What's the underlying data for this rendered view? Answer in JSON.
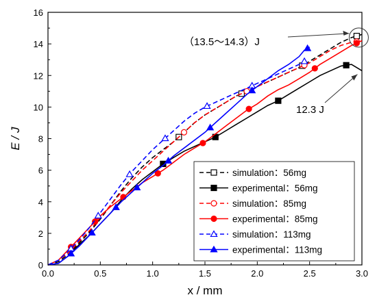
{
  "chart_data": {
    "type": "line",
    "xlabel": "x / mm",
    "ylabel": "E / J",
    "xlim": [
      0,
      3.0
    ],
    "ylim": [
      0,
      16
    ],
    "x_ticks": [
      "0.0",
      "0.5",
      "1.0",
      "1.5",
      "2.0",
      "2.5",
      "3.0"
    ],
    "y_ticks": [
      "0",
      "2",
      "4",
      "6",
      "8",
      "10",
      "12",
      "14",
      "16"
    ],
    "grid": false,
    "legend_position": "bottom-right",
    "annotations": [
      {
        "text": "（13.5～14.3）J",
        "x": 2.97,
        "y": 14.4
      },
      {
        "text": "12.3 J",
        "x": 2.97,
        "y": 12.2
      }
    ],
    "series": [
      {
        "name": "simulation：56mg",
        "style": "dashed",
        "marker": "open-square",
        "color": "#000000",
        "x": [
          0,
          0.1,
          0.2,
          0.3,
          0.4,
          0.5,
          0.6,
          0.7,
          0.8,
          0.9,
          1.0,
          1.1,
          1.2,
          1.3,
          1.4,
          1.5,
          1.6,
          1.7,
          1.8,
          1.9,
          2.0,
          2.1,
          2.2,
          2.3,
          2.4,
          2.5,
          2.6,
          2.7,
          2.8,
          2.9,
          3.0
        ],
        "y": [
          0,
          0.2,
          0.7,
          1.4,
          2.1,
          2.9,
          3.8,
          4.7,
          5.5,
          6.2,
          6.8,
          7.3,
          7.8,
          8.4,
          9.0,
          9.5,
          9.9,
          10.3,
          10.7,
          11.0,
          11.3,
          11.6,
          11.9,
          12.2,
          12.5,
          12.9,
          13.3,
          13.7,
          14.1,
          14.4,
          14.6
        ],
        "marker_x": [
          1.25,
          1.85,
          2.43,
          2.95
        ]
      },
      {
        "name": "experimental：56mg",
        "style": "solid",
        "marker": "filled-square",
        "color": "#000000",
        "x": [
          0,
          0.1,
          0.2,
          0.3,
          0.4,
          0.5,
          0.6,
          0.7,
          0.8,
          0.9,
          1.0,
          1.1,
          1.2,
          1.3,
          1.4,
          1.5,
          1.6,
          1.7,
          1.8,
          1.9,
          2.0,
          2.1,
          2.2,
          2.3,
          2.4,
          2.5,
          2.6,
          2.7,
          2.8,
          2.9,
          2.95,
          3.0
        ],
        "y": [
          0,
          0.1,
          0.6,
          1.3,
          1.9,
          2.6,
          3.3,
          4.1,
          4.8,
          5.4,
          5.9,
          6.4,
          6.8,
          7.2,
          7.5,
          7.8,
          8.1,
          8.5,
          8.9,
          9.3,
          9.7,
          10.1,
          10.4,
          10.8,
          11.2,
          11.6,
          12.0,
          12.3,
          12.6,
          12.7,
          12.5,
          12.3
        ],
        "marker_x": [
          1.1,
          1.6,
          2.2,
          2.85
        ]
      },
      {
        "name": "simulation：85mg",
        "style": "dashed",
        "marker": "open-circle",
        "color": "#ff0000",
        "x": [
          0,
          0.1,
          0.2,
          0.3,
          0.4,
          0.5,
          0.6,
          0.7,
          0.8,
          0.9,
          1.0,
          1.1,
          1.2,
          1.3,
          1.4,
          1.5,
          1.6,
          1.7,
          1.8,
          1.9,
          2.0,
          2.1,
          2.2,
          2.3,
          2.4,
          2.5,
          2.6,
          2.7,
          2.8,
          2.9,
          3.0
        ],
        "y": [
          0,
          0.3,
          0.8,
          1.5,
          2.2,
          3.0,
          3.8,
          4.6,
          5.3,
          6.0,
          6.6,
          7.2,
          7.8,
          8.4,
          9.0,
          9.5,
          9.9,
          10.3,
          10.7,
          11.0,
          11.3,
          11.6,
          11.9,
          12.2,
          12.5,
          12.8,
          13.2,
          13.6,
          13.9,
          14.1,
          14.2
        ],
        "marker_x": [
          1.3,
          1.9,
          2.45,
          2.95
        ]
      },
      {
        "name": "experimental：85mg",
        "style": "solid",
        "marker": "filled-circle",
        "color": "#ff0000",
        "x": [
          0,
          0.1,
          0.2,
          0.3,
          0.4,
          0.5,
          0.6,
          0.7,
          0.8,
          0.9,
          1.0,
          1.1,
          1.2,
          1.3,
          1.4,
          1.5,
          1.6,
          1.7,
          1.8,
          1.9,
          2.0,
          2.1,
          2.2,
          2.3,
          2.4,
          2.5,
          2.6,
          2.7,
          2.8,
          2.9,
          3.0
        ],
        "y": [
          0,
          0.3,
          1.0,
          1.7,
          2.4,
          3.1,
          3.7,
          4.2,
          4.7,
          5.2,
          5.6,
          6.0,
          6.5,
          7.0,
          7.4,
          7.8,
          8.3,
          8.8,
          9.3,
          9.8,
          10.2,
          10.7,
          11.1,
          11.4,
          11.8,
          12.2,
          12.7,
          13.1,
          13.5,
          13.9,
          14.2
        ],
        "marker_x": [
          0.22,
          0.45,
          0.72,
          1.05,
          1.48,
          1.92,
          2.55,
          2.95
        ]
      },
      {
        "name": "simulation：113mg",
        "style": "dashed",
        "marker": "open-triangle",
        "color": "#0000ff",
        "x": [
          0,
          0.1,
          0.2,
          0.3,
          0.4,
          0.5,
          0.6,
          0.7,
          0.8,
          0.9,
          1.0,
          1.1,
          1.2,
          1.3,
          1.4,
          1.5,
          1.6,
          1.7,
          1.8,
          1.9,
          2.0,
          2.1,
          2.2,
          2.3,
          2.4,
          2.45
        ],
        "y": [
          0,
          0.3,
          0.9,
          1.6,
          2.4,
          3.3,
          4.2,
          5.1,
          5.9,
          6.6,
          7.3,
          7.9,
          8.5,
          9.1,
          9.6,
          10.0,
          10.3,
          10.6,
          10.9,
          11.2,
          11.5,
          11.8,
          12.1,
          12.4,
          12.7,
          12.9
        ],
        "marker_x": [
          0.22,
          0.48,
          0.78,
          1.12,
          1.52,
          1.95,
          2.45
        ]
      },
      {
        "name": "experimental：113mg",
        "style": "solid",
        "marker": "filled-triangle",
        "color": "#0000ff",
        "x": [
          0,
          0.1,
          0.2,
          0.3,
          0.4,
          0.5,
          0.6,
          0.7,
          0.8,
          0.9,
          1.0,
          1.1,
          1.2,
          1.3,
          1.4,
          1.5,
          1.6,
          1.7,
          1.8,
          1.9,
          2.0,
          2.1,
          2.2,
          2.3,
          2.4,
          2.45,
          2.5
        ],
        "y": [
          0,
          0.1,
          0.6,
          1.2,
          1.9,
          2.6,
          3.3,
          4.0,
          4.6,
          5.2,
          5.8,
          6.3,
          6.9,
          7.4,
          7.9,
          8.4,
          9.0,
          9.6,
          10.2,
          10.8,
          11.3,
          11.8,
          12.3,
          12.7,
          13.2,
          13.6,
          13.8
        ],
        "marker_x": [
          0.22,
          0.42,
          0.65,
          0.85,
          1.15,
          1.55,
          1.95,
          2.48
        ]
      }
    ]
  }
}
